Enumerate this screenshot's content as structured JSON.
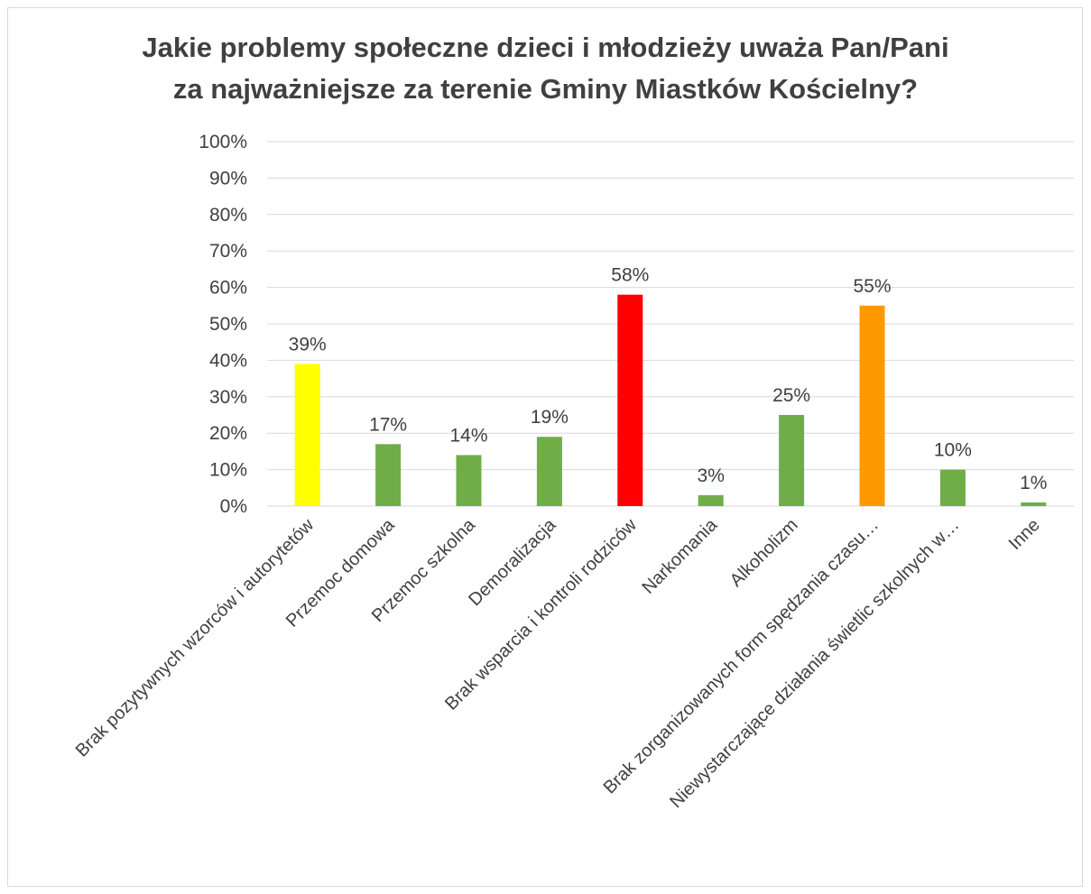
{
  "chart_data": {
    "type": "bar",
    "title_lines": [
      "Jakie problemy społeczne dzieci i młodzieży uważa Pan/Pani",
      "za najważniejsze za terenie Gminy Miastków Kościelny?"
    ],
    "categories": [
      "Brak pozytywnych wzorców i autorytetów",
      "Przemoc domowa",
      "Przemoc szkolna",
      "Demoralizacja",
      "Brak wsparcia i kontroli rodziców",
      "Narkomania",
      "Alkoholizm",
      "Brak zorganizowanych form spędzania czasu…",
      "Niewystarczające działania świetlic szkolnych w…",
      "Inne"
    ],
    "values": [
      39,
      17,
      14,
      19,
      58,
      3,
      25,
      55,
      10,
      1
    ],
    "data_labels": [
      "39%",
      "17%",
      "14%",
      "19%",
      "58%",
      "3%",
      "25%",
      "55%",
      "10%",
      "1%"
    ],
    "bar_colors": [
      "#FFFF00",
      "#70AD47",
      "#70AD47",
      "#70AD47",
      "#FF0000",
      "#70AD47",
      "#70AD47",
      "#FF9900",
      "#70AD47",
      "#70AD47"
    ],
    "ylim": [
      0,
      100
    ],
    "yticks": [
      "0%",
      "10%",
      "20%",
      "30%",
      "40%",
      "50%",
      "60%",
      "70%",
      "80%",
      "90%",
      "100%"
    ],
    "grid": true,
    "gridline_color": "#d9d9d9",
    "legend": "none"
  }
}
